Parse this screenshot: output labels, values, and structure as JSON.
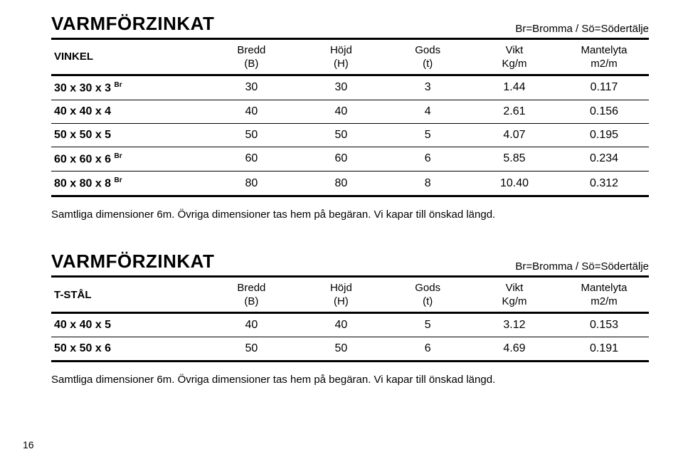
{
  "page_number": "16",
  "table1": {
    "title": "VARMFÖRZINKAT",
    "subtitle": "Br=Bromma / Sö=Södertälje",
    "category": "VINKEL",
    "columns": [
      {
        "line1": "Bredd",
        "line2": "(B)"
      },
      {
        "line1": "Höjd",
        "line2": "(H)"
      },
      {
        "line1": "Gods",
        "line2": "(t)"
      },
      {
        "line1": "Vikt",
        "line2": "Kg/m"
      },
      {
        "line1": "Mantelyta",
        "line2": "m2/m"
      }
    ],
    "rows": [
      {
        "dim": "30 x 30 x 3",
        "sup": "Br",
        "b": "30",
        "h": "30",
        "t": "3",
        "vikt": "1.44",
        "mantel": "0.117"
      },
      {
        "dim": "40 x 40 x 4",
        "sup": "",
        "b": "40",
        "h": "40",
        "t": "4",
        "vikt": "2.61",
        "mantel": "0.156"
      },
      {
        "dim": "50 x 50 x 5",
        "sup": "",
        "b": "50",
        "h": "50",
        "t": "5",
        "vikt": "4.07",
        "mantel": "0.195"
      },
      {
        "dim": "60 x 60 x 6",
        "sup": "Br",
        "b": "60",
        "h": "60",
        "t": "6",
        "vikt": "5.85",
        "mantel": "0.234"
      },
      {
        "dim": "80 x 80 x 8",
        "sup": "Br",
        "b": "80",
        "h": "80",
        "t": "8",
        "vikt": "10.40",
        "mantel": "0.312"
      }
    ],
    "note": "Samtliga dimensioner 6m. Övriga dimensioner tas hem på begäran. Vi kapar till önskad längd."
  },
  "table2": {
    "title": "VARMFÖRZINKAT",
    "subtitle": "Br=Bromma / Sö=Södertälje",
    "category": "T-STÅL",
    "columns": [
      {
        "line1": "Bredd",
        "line2": "(B)"
      },
      {
        "line1": "Höjd",
        "line2": "(H)"
      },
      {
        "line1": "Gods",
        "line2": "(t)"
      },
      {
        "line1": "Vikt",
        "line2": "Kg/m"
      },
      {
        "line1": "Mantelyta",
        "line2": "m2/m"
      }
    ],
    "rows": [
      {
        "dim": "40 x 40 x 5",
        "sup": "",
        "b": "40",
        "h": "40",
        "t": "5",
        "vikt": "3.12",
        "mantel": "0.153"
      },
      {
        "dim": "50 x 50 x 6",
        "sup": "",
        "b": "50",
        "h": "50",
        "t": "6",
        "vikt": "4.69",
        "mantel": "0.191"
      }
    ],
    "note": "Samtliga dimensioner 6m. Övriga dimensioner tas hem på begäran. Vi kapar till önskad längd."
  }
}
